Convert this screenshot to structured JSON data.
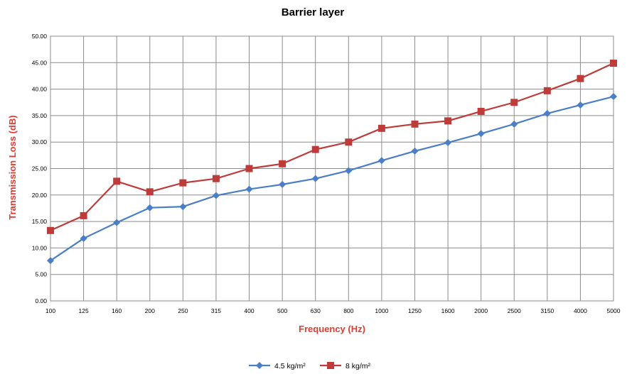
{
  "chart_data": {
    "type": "line",
    "title": "Barrier layer",
    "xlabel": "Frequency (Hz)",
    "ylabel": "Transmission Loss (dB)",
    "categories": [
      "100",
      "125",
      "160",
      "200",
      "250",
      "315",
      "400",
      "500",
      "630",
      "800",
      "1000",
      "1250",
      "1600",
      "2000",
      "2500",
      "3150",
      "4000",
      "5000"
    ],
    "ylim": [
      0,
      50
    ],
    "yticks": [
      "0.00",
      "5.00",
      "10.00",
      "15.00",
      "20.00",
      "25.00",
      "30.00",
      "35.00",
      "40.00",
      "45.00",
      "50.00"
    ],
    "grid": true,
    "legend_position": "bottom",
    "axis_title_color": "#e03c31",
    "series": [
      {
        "name": "4.5 kg/m²",
        "color": "#4a7ec6",
        "marker": "diamond",
        "values": [
          7.6,
          11.8,
          14.8,
          17.6,
          17.8,
          19.9,
          21.1,
          22.0,
          23.1,
          24.6,
          26.5,
          28.3,
          29.9,
          31.6,
          33.4,
          35.4,
          37.0,
          38.6
        ]
      },
      {
        "name": "8 kg/m²",
        "color": "#bf3b3a",
        "marker": "square",
        "values": [
          13.3,
          16.1,
          22.6,
          20.6,
          22.3,
          23.1,
          25.0,
          25.9,
          28.6,
          30.0,
          32.6,
          33.4,
          34.0,
          35.8,
          37.5,
          39.7,
          42.0,
          44.9
        ]
      }
    ]
  }
}
